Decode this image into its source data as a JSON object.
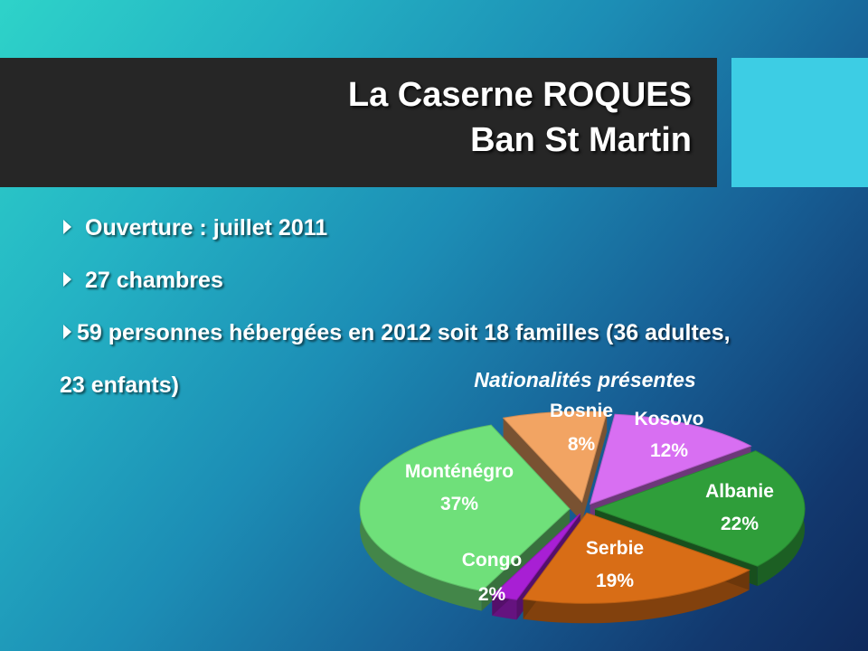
{
  "slide": {
    "title_line1": "La Caserne ROQUES",
    "title_line2": "Ban St Martin",
    "bullets": [
      "Ouverture : juillet 2011",
      "27 chambres",
      "59 personnes hébergées en 2012 soit 18 familles (36 adultes,",
      "23 enfants)"
    ]
  },
  "colors": {
    "title_bar": "#262626",
    "accent_box": "#3dcde4",
    "text": "#ffffff"
  },
  "chart_data": {
    "type": "pie",
    "title": "Nationalités présentes",
    "style": "3d-exploded",
    "slices": [
      {
        "label": "Bosnie",
        "value": 8,
        "display": "8%",
        "color": "#f2a463"
      },
      {
        "label": "Kosovo",
        "value": 12,
        "display": "12%",
        "color": "#d86ff2"
      },
      {
        "label": "Albanie",
        "value": 22,
        "display": "22%",
        "color": "#2f9e3a"
      },
      {
        "label": "Serbie",
        "value": 19,
        "display": "19%",
        "color": "#d86d16"
      },
      {
        "label": "Congo",
        "value": 2,
        "display": "2%",
        "color": "#a81fd4"
      },
      {
        "label": "Monténégro",
        "value": 37,
        "display": "37%",
        "color": "#6fe07a"
      }
    ]
  }
}
